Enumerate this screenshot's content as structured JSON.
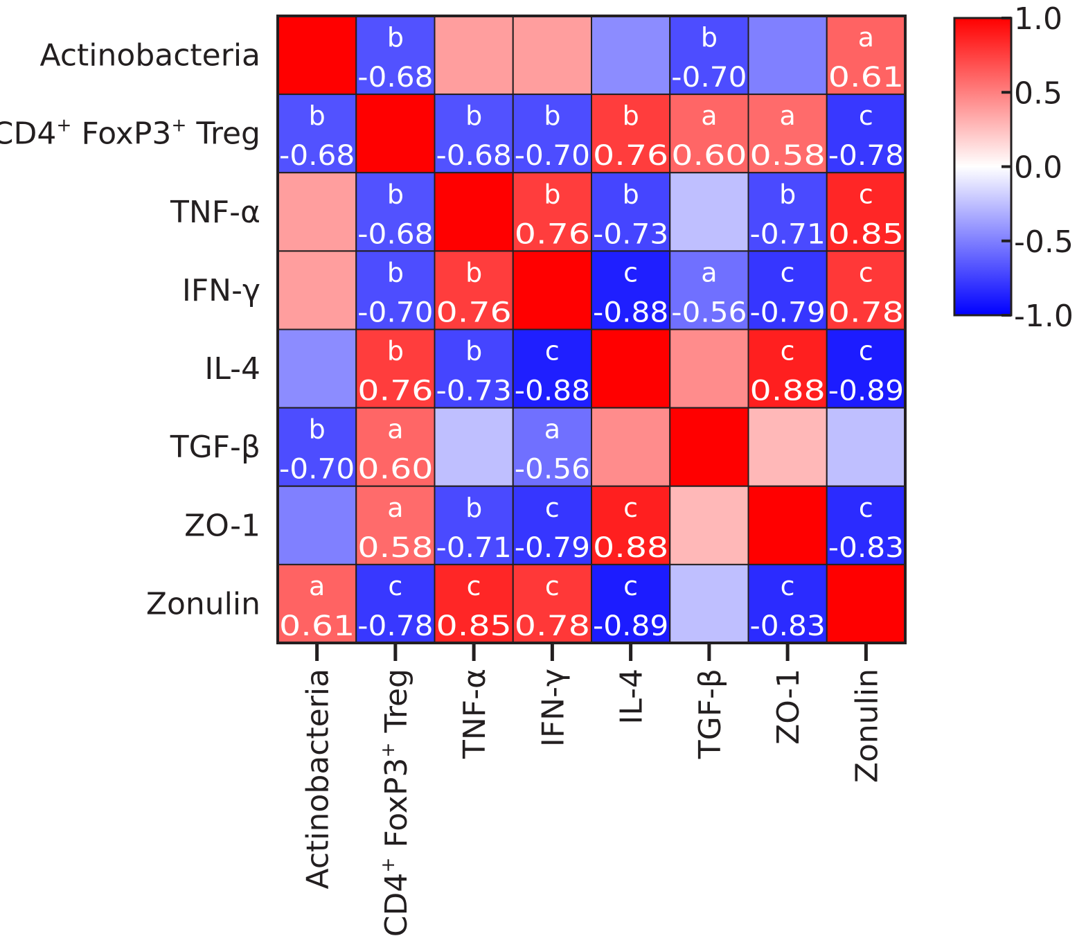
{
  "chart_data": {
    "type": "heatmap",
    "title": "",
    "variables": [
      {
        "main": "Actinobacteria"
      },
      {
        "main": "CD4",
        "sup1": "+",
        "mid": " FoxP3",
        "sup2": "+",
        "tail": " Treg"
      },
      {
        "main": "TNF-α"
      },
      {
        "main": "IFN-γ"
      },
      {
        "main": "IL-4"
      },
      {
        "main": "TGF-β"
      },
      {
        "main": "ZO-1"
      },
      {
        "main": "Zonulin"
      }
    ],
    "matrix": [
      [
        1.0,
        -0.68,
        0.38,
        0.38,
        -0.45,
        -0.7,
        -0.5,
        0.61
      ],
      [
        -0.68,
        1.0,
        -0.68,
        -0.7,
        0.76,
        0.6,
        0.58,
        -0.78
      ],
      [
        0.38,
        -0.68,
        1.0,
        0.76,
        -0.73,
        -0.25,
        -0.71,
        0.85
      ],
      [
        0.38,
        -0.7,
        0.76,
        1.0,
        -0.88,
        -0.56,
        -0.79,
        0.78
      ],
      [
        -0.45,
        0.76,
        -0.73,
        -0.88,
        1.0,
        0.45,
        0.88,
        -0.89
      ],
      [
        -0.7,
        0.6,
        -0.25,
        -0.56,
        0.45,
        1.0,
        0.28,
        -0.25
      ],
      [
        -0.5,
        0.58,
        -0.71,
        -0.79,
        0.88,
        0.28,
        1.0,
        -0.83
      ],
      [
        0.61,
        -0.78,
        0.85,
        0.78,
        -0.89,
        -0.25,
        -0.83,
        1.0
      ]
    ],
    "cell_labels": [
      [
        null,
        {
          "sig": "b",
          "value": "-0.68"
        },
        null,
        null,
        null,
        {
          "sig": "b",
          "value": "-0.70"
        },
        null,
        {
          "sig": "a",
          "value": "0.61"
        }
      ],
      [
        {
          "sig": "b",
          "value": "-0.68"
        },
        null,
        {
          "sig": "b",
          "value": "-0.68"
        },
        {
          "sig": "b",
          "value": "-0.70"
        },
        {
          "sig": "b",
          "value": "0.76"
        },
        {
          "sig": "a",
          "value": "0.60"
        },
        {
          "sig": "a",
          "value": "0.58"
        },
        {
          "sig": "c",
          "value": "-0.78"
        }
      ],
      [
        null,
        {
          "sig": "b",
          "value": "-0.68"
        },
        null,
        {
          "sig": "b",
          "value": "0.76"
        },
        {
          "sig": "b",
          "value": "-0.73"
        },
        null,
        {
          "sig": "b",
          "value": "-0.71"
        },
        {
          "sig": "c",
          "value": "0.85"
        }
      ],
      [
        null,
        {
          "sig": "b",
          "value": "-0.70"
        },
        {
          "sig": "b",
          "value": "0.76"
        },
        null,
        {
          "sig": "c",
          "value": "-0.88"
        },
        {
          "sig": "a",
          "value": "-0.56"
        },
        {
          "sig": "c",
          "value": "-0.79"
        },
        {
          "sig": "c",
          "value": "0.78"
        }
      ],
      [
        null,
        {
          "sig": "b",
          "value": "0.76"
        },
        {
          "sig": "b",
          "value": "-0.73"
        },
        {
          "sig": "c",
          "value": "-0.88"
        },
        null,
        null,
        {
          "sig": "c",
          "value": "0.88"
        },
        {
          "sig": "c",
          "value": "-0.89"
        }
      ],
      [
        {
          "sig": "b",
          "value": "-0.70"
        },
        {
          "sig": "a",
          "value": "0.60"
        },
        null,
        {
          "sig": "a",
          "value": "-0.56"
        },
        null,
        null,
        null,
        null
      ],
      [
        null,
        {
          "sig": "a",
          "value": "0.58"
        },
        {
          "sig": "b",
          "value": "-0.71"
        },
        {
          "sig": "c",
          "value": "-0.79"
        },
        {
          "sig": "c",
          "value": "0.88"
        },
        null,
        null,
        {
          "sig": "c",
          "value": "-0.83"
        }
      ],
      [
        {
          "sig": "a",
          "value": "0.61"
        },
        {
          "sig": "c",
          "value": "-0.78"
        },
        {
          "sig": "c",
          "value": "0.85"
        },
        {
          "sig": "c",
          "value": "0.78"
        },
        {
          "sig": "c",
          "value": "-0.89"
        },
        null,
        {
          "sig": "c",
          "value": "-0.83"
        },
        null
      ]
    ],
    "colorbar": {
      "range": [
        -1.0,
        1.0
      ],
      "ticks": [
        "1.0",
        "0.5",
        "0.0",
        "-0.5",
        "-1.0"
      ],
      "tick_values": [
        1.0,
        0.5,
        0.0,
        -0.5,
        -1.0
      ],
      "low_color": "#0000ff",
      "mid_color": "#ffffff",
      "high_color": "#ff0000"
    },
    "grid": true,
    "legend_position": "right"
  }
}
